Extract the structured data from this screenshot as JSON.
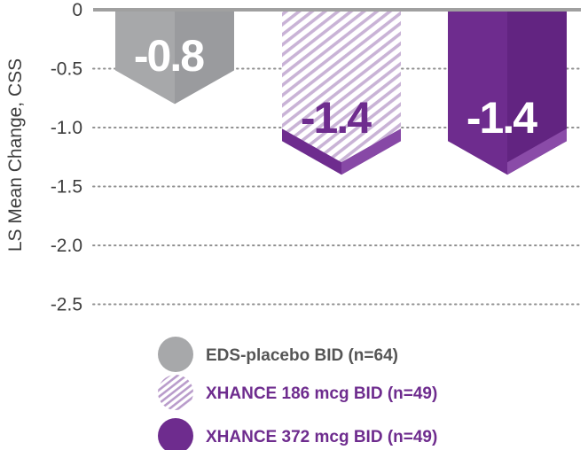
{
  "chart_data": {
    "type": "bar",
    "title": "",
    "xlabel": "",
    "ylabel": "LS Mean Change, CSS",
    "ylim": [
      -2.5,
      0
    ],
    "yticks": [
      0,
      -0.5,
      -1.0,
      -1.5,
      -2.0,
      -2.5
    ],
    "ytick_labels": [
      "0",
      "-0.5",
      "-1.0",
      "-1.5",
      "-2.0",
      "-2.5"
    ],
    "grid": true,
    "legend_position": "bottom",
    "categories": [
      "EDS-placebo BID (n=64)",
      "XHANCE 186 mcg BID (n=49)",
      "XHANCE 372 mcg BID (n=49)"
    ],
    "series": [
      {
        "name": "",
        "values": [
          -0.8,
          -1.4,
          -1.4
        ],
        "data_labels": [
          "-0.8",
          "-1.4",
          "-1.4"
        ]
      }
    ],
    "legend": [
      {
        "label": "EDS-placebo BID (n=64)",
        "swatch": "solid-gray"
      },
      {
        "label": "XHANCE 186 mcg BID (n=49)",
        "swatch": "hatched-purple"
      },
      {
        "label": "XHANCE 372 mcg BID (n=49)",
        "swatch": "solid-purple"
      }
    ],
    "colors": {
      "placebo": "#a7a8aa",
      "placebo_dark": "#8f9093",
      "purple": "#6e2c8e",
      "purple_light": "#8a4ba8",
      "purple_dark": "#5a1f76",
      "hatch_light": "#c9b3d6",
      "axis": "#a0a0a0",
      "grid": "#909090",
      "legend_gray_text": "#555555",
      "legend_purple_text": "#6e2c8e"
    }
  }
}
